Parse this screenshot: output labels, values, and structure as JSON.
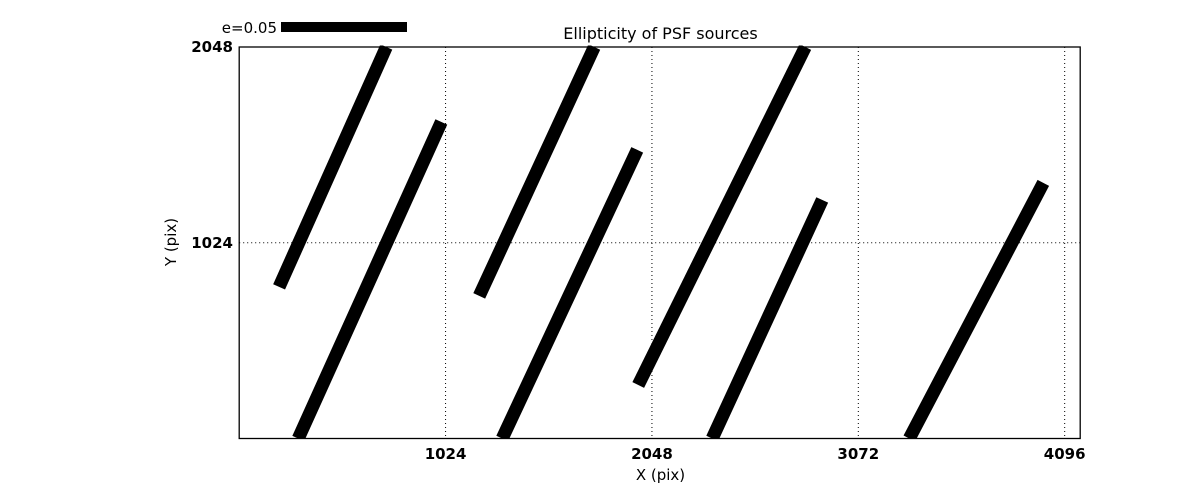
{
  "page": {
    "background": "#ffffff"
  },
  "chart_data": {
    "type": "line",
    "subtype": "psf-ellipticity-whisker-segments",
    "title": "Ellipticity of PSF sources",
    "xlabel": "X (pix)",
    "ylabel": "Y (pix)",
    "xlim": [
      0,
      4173
    ],
    "ylim": [
      0,
      2048
    ],
    "xticks": [
      1024,
      2048,
      3072,
      4096
    ],
    "yticks": [
      1024,
      2048
    ],
    "grid": "dotted",
    "legend": {
      "label": "e=0.05",
      "length_pix": 625,
      "position": "upper-left-outside"
    },
    "segments": [
      {
        "x1": 198,
        "y1": 793,
        "x2": 730,
        "y2": 2048
      },
      {
        "x1": 293,
        "y1": 0,
        "x2": 1003,
        "y2": 1656
      },
      {
        "x1": 1191,
        "y1": 746,
        "x2": 1762,
        "y2": 2048
      },
      {
        "x1": 1305,
        "y1": 0,
        "x2": 1975,
        "y2": 1510
      },
      {
        "x1": 1980,
        "y1": 280,
        "x2": 2809,
        "y2": 2048
      },
      {
        "x1": 2347,
        "y1": 0,
        "x2": 2893,
        "y2": 1248
      },
      {
        "x1": 3325,
        "y1": 0,
        "x2": 3990,
        "y2": 1337
      }
    ],
    "colors": {
      "line": "#000000",
      "grid": "#000000",
      "frame": "#000000",
      "text": "#000000"
    }
  }
}
